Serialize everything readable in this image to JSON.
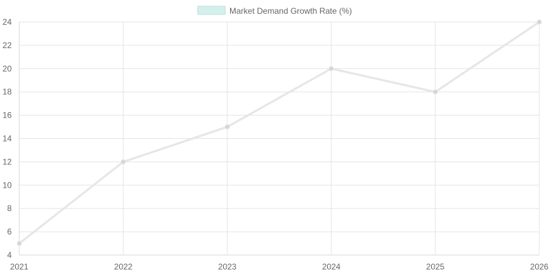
{
  "chart_data": {
    "type": "line",
    "title": "",
    "xlabel": "",
    "ylabel": "",
    "categories": [
      "2021",
      "2022",
      "2023",
      "2024",
      "2025",
      "2026"
    ],
    "series": [
      {
        "name": "Market Demand Growth Rate (%)",
        "values": [
          5,
          12,
          15,
          20,
          18,
          24
        ],
        "line_color": "#e6e6e6",
        "point_color": "#cfd8d6",
        "legend_fill": "#d5f0ec",
        "legend_border": "#b8e2dc"
      }
    ],
    "ylim": [
      4,
      24
    ],
    "y_ticks": [
      4,
      6,
      8,
      10,
      12,
      14,
      16,
      18,
      20,
      22,
      24
    ],
    "grid": true,
    "legend_position": "top-center"
  }
}
